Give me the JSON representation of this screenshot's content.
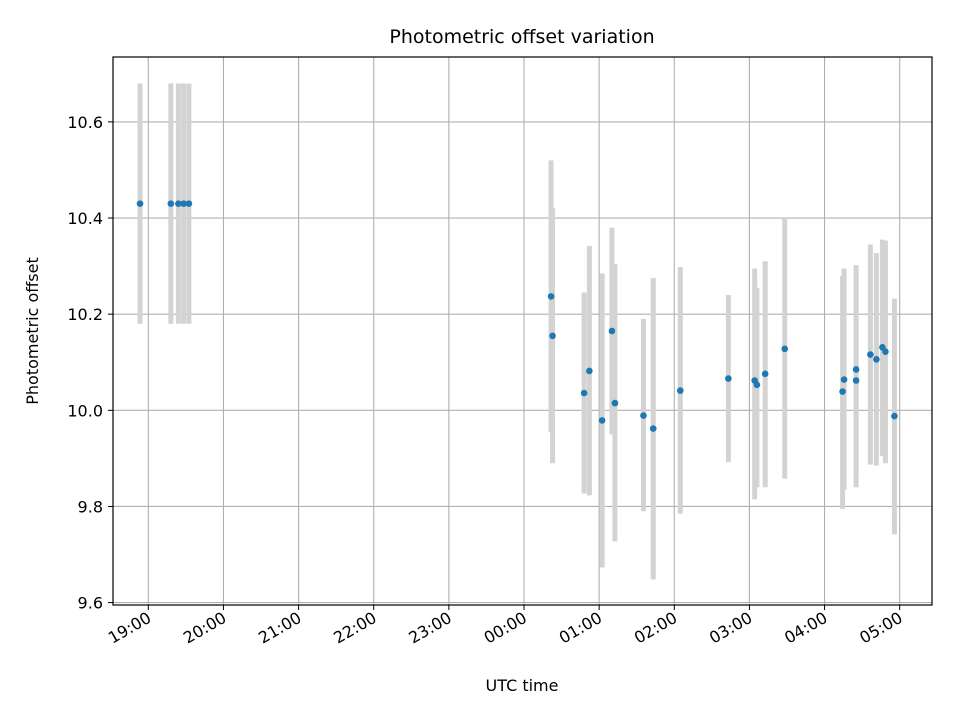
{
  "chart_data": {
    "type": "scatter",
    "title": "Photometric offset variation",
    "xlabel": "UTC time",
    "ylabel": "Photometric offset",
    "x_ticks": [
      "19:00",
      "20:00",
      "21:00",
      "22:00",
      "23:00",
      "00:00",
      "01:00",
      "02:00",
      "03:00",
      "04:00",
      "05:00"
    ],
    "x_tick_hours": [
      19,
      20,
      21,
      22,
      23,
      24,
      25,
      26,
      27,
      28,
      29
    ],
    "xlim": [
      18.53,
      29.43
    ],
    "y_ticks": [
      "9.6",
      "9.8",
      "10.0",
      "10.2",
      "10.4",
      "10.6"
    ],
    "y_tick_values": [
      9.6,
      9.8,
      10.0,
      10.2,
      10.4,
      10.6
    ],
    "ylim": [
      9.595,
      10.735
    ],
    "grid": true,
    "point_color": "#1f77b4",
    "errorbar_color": "#d3d3d3",
    "time_unit": "hours UTC (values above 24 are after midnight)",
    "series": [
      {
        "points": [
          {
            "t": 18.89,
            "y": 10.43,
            "ylo": 10.18,
            "yhi": 10.68
          },
          {
            "t": 19.3,
            "y": 10.43,
            "ylo": 10.18,
            "yhi": 10.68
          },
          {
            "t": 19.4,
            "y": 10.43,
            "ylo": 10.18,
            "yhi": 10.68
          },
          {
            "t": 19.47,
            "y": 10.43,
            "ylo": 10.18,
            "yhi": 10.68
          },
          {
            "t": 19.54,
            "y": 10.43,
            "ylo": 10.18,
            "yhi": 10.68
          },
          {
            "t": 24.36,
            "y": 10.237,
            "ylo": 9.955,
            "yhi": 10.52
          },
          {
            "t": 24.38,
            "y": 10.155,
            "ylo": 9.89,
            "yhi": 10.42
          },
          {
            "t": 24.8,
            "y": 10.036,
            "ylo": 9.827,
            "yhi": 10.245
          },
          {
            "t": 24.87,
            "y": 10.082,
            "ylo": 9.823,
            "yhi": 10.342
          },
          {
            "t": 25.04,
            "y": 9.979,
            "ylo": 9.673,
            "yhi": 10.285
          },
          {
            "t": 25.17,
            "y": 10.165,
            "ylo": 9.95,
            "yhi": 10.38
          },
          {
            "t": 25.21,
            "y": 10.015,
            "ylo": 9.727,
            "yhi": 10.305
          },
          {
            "t": 25.59,
            "y": 9.989,
            "ylo": 9.79,
            "yhi": 10.19
          },
          {
            "t": 25.72,
            "y": 9.962,
            "ylo": 9.648,
            "yhi": 10.275
          },
          {
            "t": 26.08,
            "y": 10.041,
            "ylo": 9.785,
            "yhi": 10.298
          },
          {
            "t": 26.72,
            "y": 10.066,
            "ylo": 9.892,
            "yhi": 10.24
          },
          {
            "t": 27.07,
            "y": 10.062,
            "ylo": 9.815,
            "yhi": 10.295
          },
          {
            "t": 27.1,
            "y": 10.053,
            "ylo": 9.84,
            "yhi": 10.255
          },
          {
            "t": 27.21,
            "y": 10.076,
            "ylo": 9.84,
            "yhi": 10.31
          },
          {
            "t": 27.47,
            "y": 10.128,
            "ylo": 9.858,
            "yhi": 10.398
          },
          {
            "t": 28.24,
            "y": 10.039,
            "ylo": 9.795,
            "yhi": 10.28
          },
          {
            "t": 28.26,
            "y": 10.064,
            "ylo": 9.835,
            "yhi": 10.295
          },
          {
            "t": 28.42,
            "y": 10.085,
            "ylo": 9.87,
            "yhi": 10.29
          },
          {
            "t": 28.42,
            "y": 10.062,
            "ylo": 9.84,
            "yhi": 10.302
          },
          {
            "t": 28.61,
            "y": 10.116,
            "ylo": 9.887,
            "yhi": 10.345
          },
          {
            "t": 28.69,
            "y": 10.106,
            "ylo": 9.885,
            "yhi": 10.327
          },
          {
            "t": 28.77,
            "y": 10.131,
            "ylo": 9.905,
            "yhi": 10.355
          },
          {
            "t": 28.81,
            "y": 10.122,
            "ylo": 9.89,
            "yhi": 10.353
          },
          {
            "t": 28.93,
            "y": 9.988,
            "ylo": 9.742,
            "yhi": 10.232
          }
        ]
      }
    ]
  }
}
